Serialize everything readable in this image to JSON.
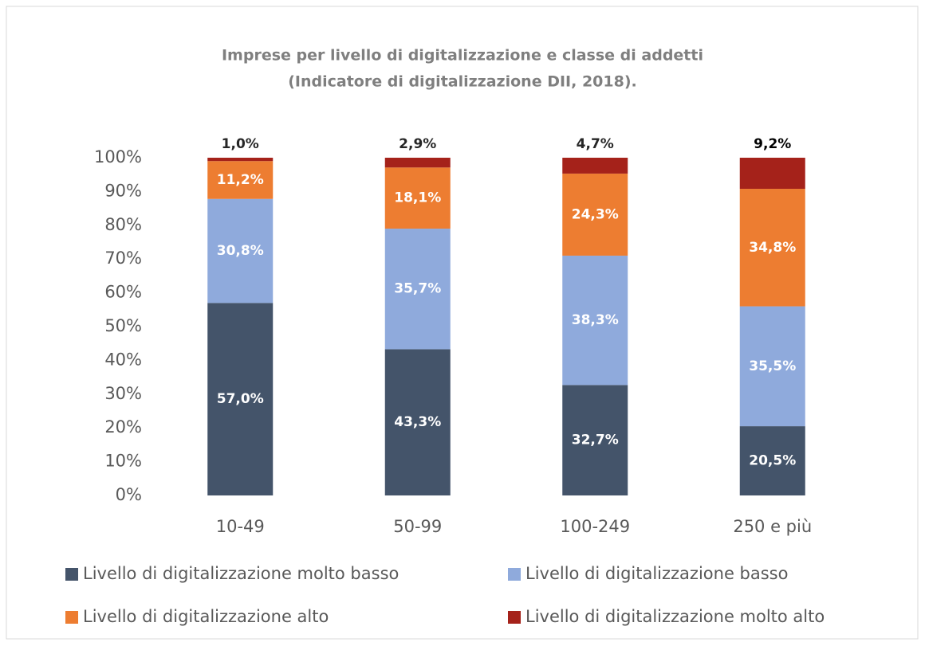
{
  "chart_data": {
    "type": "stacked_bar",
    "title": [
      "Imprese per livello di digitalizzazione e classe di addetti",
      "(Indicatore di digitalizzazione DII, 2018)."
    ],
    "categories": [
      "10-49",
      "50-99",
      "100-249",
      "250 e più"
    ],
    "series": [
      {
        "name": "Livello di digitalizzazione molto basso",
        "color": "#44546a",
        "values": [
          57.0,
          43.3,
          32.7,
          20.5
        ],
        "value_labels": [
          "57,0%",
          "43,3%",
          "32,7%",
          "20,5%"
        ]
      },
      {
        "name": "Livello di digitalizzazione basso",
        "color": "#8faadc",
        "values": [
          30.8,
          35.7,
          38.3,
          35.5
        ],
        "value_labels": [
          "30,8%",
          "35,7%",
          "38,3%",
          "35,5%"
        ]
      },
      {
        "name": "Livello di digitalizzazione alto",
        "color": "#ed7d31",
        "values": [
          11.2,
          18.1,
          24.3,
          34.8
        ],
        "value_labels": [
          "11,2%",
          "18,1%",
          "24,3%",
          "34,8%"
        ]
      },
      {
        "name": "Livello di digitalizzazione molto alto",
        "color": "#a5221a",
        "values": [
          1.0,
          2.9,
          4.7,
          9.2
        ],
        "value_labels": [
          "1,0%",
          "2,9%",
          "4,7%",
          "9,2%"
        ]
      }
    ],
    "ylim": [
      0,
      100
    ],
    "yticks": [
      {
        "value": 0,
        "label": "0%"
      },
      {
        "value": 10,
        "label": "10%"
      },
      {
        "value": 20,
        "label": "20%"
      },
      {
        "value": 30,
        "label": "30%"
      },
      {
        "value": 40,
        "label": "40%"
      },
      {
        "value": 50,
        "label": "50%"
      },
      {
        "value": 60,
        "label": "60%"
      },
      {
        "value": 70,
        "label": "70%"
      },
      {
        "value": 80,
        "label": "80%"
      },
      {
        "value": 90,
        "label": "90%"
      },
      {
        "value": 100,
        "label": "100%"
      }
    ],
    "grid": false
  }
}
